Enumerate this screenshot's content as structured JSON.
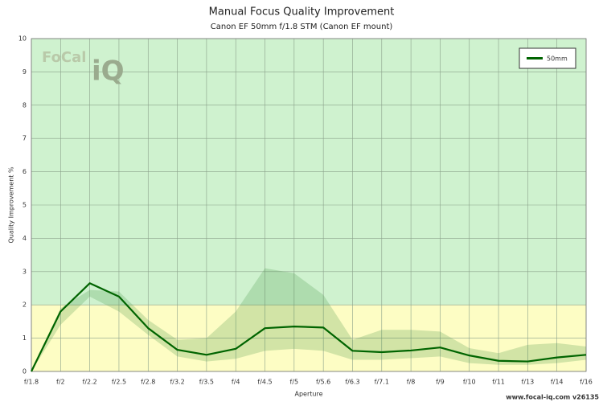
{
  "chart_data": {
    "type": "line",
    "title": "Manual Focus Quality Improvement",
    "subtitle": "Canon EF 50mm f/1.8 STM (Canon EF mount)",
    "x_label": "Aperture",
    "y_label": "Quality Improvement %",
    "footer": "www.focal-iq.com  v26135",
    "logo": [
      "FoCal",
      "iQ"
    ],
    "categories": [
      "f/1.8",
      "f/2",
      "f/2.2",
      "f/2.5",
      "f/2.8",
      "f/3.2",
      "f/3.5",
      "f/4",
      "f/4.5",
      "f/5",
      "f/5.6",
      "f/6.3",
      "f/7.1",
      "f/8",
      "f/9",
      "f/10",
      "f/11",
      "f/13",
      "f/14",
      "f/16"
    ],
    "series": [
      {
        "name": "50mm",
        "color": "#006400",
        "values": [
          0,
          1.8,
          2.65,
          2.25,
          1.3,
          0.65,
          0.5,
          0.68,
          1.3,
          1.35,
          1.32,
          0.62,
          0.58,
          0.63,
          0.72,
          0.48,
          0.32,
          0.3,
          0.42,
          0.5
        ]
      }
    ],
    "band": {
      "color": "#3c8c3c",
      "upper": [
        0,
        1.9,
        2.45,
        2.4,
        1.55,
        0.95,
        1.0,
        1.8,
        3.1,
        2.95,
        2.3,
        0.95,
        1.25,
        1.25,
        1.2,
        0.7,
        0.55,
        0.8,
        0.85,
        0.75
      ],
      "lower": [
        0,
        1.4,
        2.25,
        1.8,
        1.1,
        0.45,
        0.3,
        0.38,
        0.62,
        0.68,
        0.62,
        0.35,
        0.35,
        0.4,
        0.45,
        0.25,
        0.2,
        0.2,
        0.25,
        0.35
      ]
    },
    "zones": [
      {
        "from": 0,
        "to": 2,
        "color": "#fdfdc4"
      },
      {
        "from": 2,
        "to": 10,
        "color": "#cff2cf"
      }
    ],
    "ylim": [
      0,
      10
    ],
    "yticks": [
      0,
      1,
      2,
      3,
      4,
      5,
      6,
      7,
      8,
      9,
      10
    ],
    "grid": true,
    "legend": "top-right"
  }
}
